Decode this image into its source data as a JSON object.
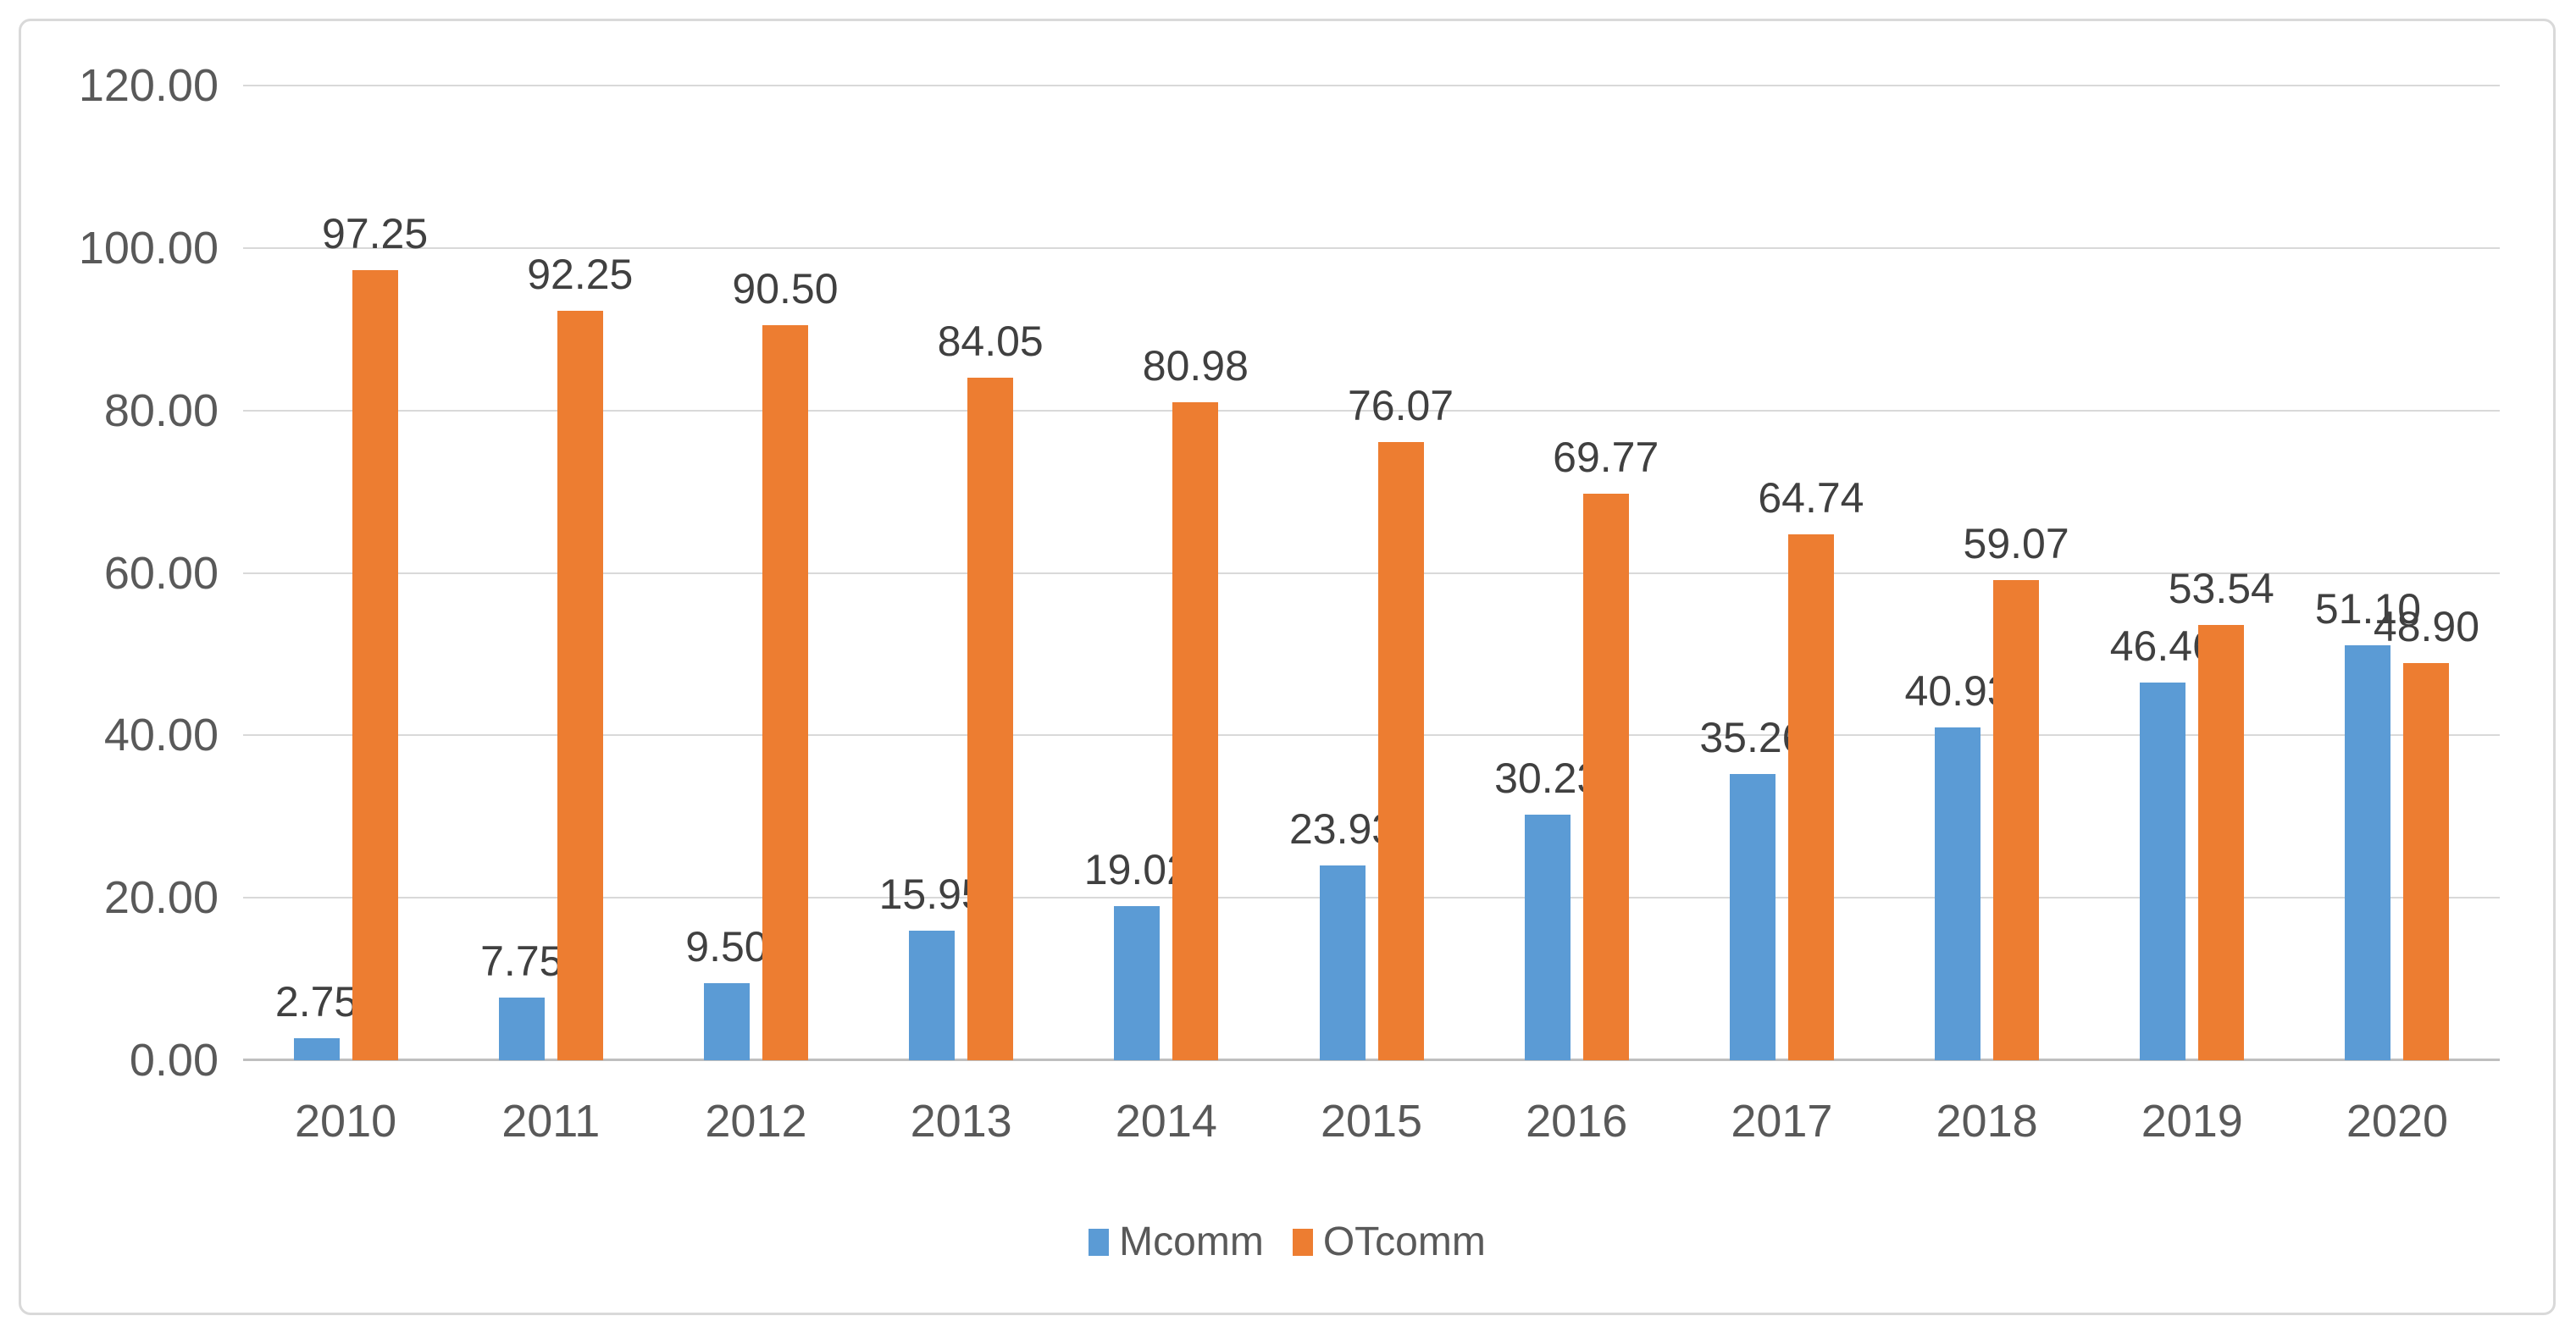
{
  "chart_data": {
    "type": "bar",
    "title": "",
    "xlabel": "",
    "ylabel": "",
    "categories": [
      "2010",
      "2011",
      "2012",
      "2013",
      "2014",
      "2015",
      "2016",
      "2017",
      "2018",
      "2019",
      "2020"
    ],
    "series": [
      {
        "name": "Mcomm",
        "color": "#5B9BD5",
        "values": [
          2.75,
          7.75,
          9.5,
          15.95,
          19.02,
          23.93,
          30.23,
          35.26,
          40.93,
          46.46,
          51.1
        ]
      },
      {
        "name": "OTcomm",
        "color": "#ED7D31",
        "values": [
          97.25,
          92.25,
          90.5,
          84.05,
          80.98,
          76.07,
          69.77,
          64.74,
          59.07,
          53.54,
          48.9
        ]
      }
    ],
    "data_labels_shown": true,
    "data_label_decimals": 2,
    "y_axis": {
      "min": 0,
      "max": 120,
      "step": 20,
      "tick_labels": [
        "0.00",
        "20.00",
        "40.00",
        "60.00",
        "80.00",
        "100.00",
        "120.00"
      ]
    },
    "grid": true,
    "legend_position": "bottom",
    "legend_entries": [
      "Mcomm",
      "OTcomm"
    ]
  },
  "styles": {
    "series_blue": "#5B9BD5",
    "series_orange": "#ED7D31",
    "gridline_color": "#D9D9D9",
    "axis_line_color": "#BFBFBF",
    "axis_text_color": "#595959",
    "data_label_color": "#404040",
    "frame_border_color": "#D9D9D9",
    "background": "#FFFFFF"
  }
}
